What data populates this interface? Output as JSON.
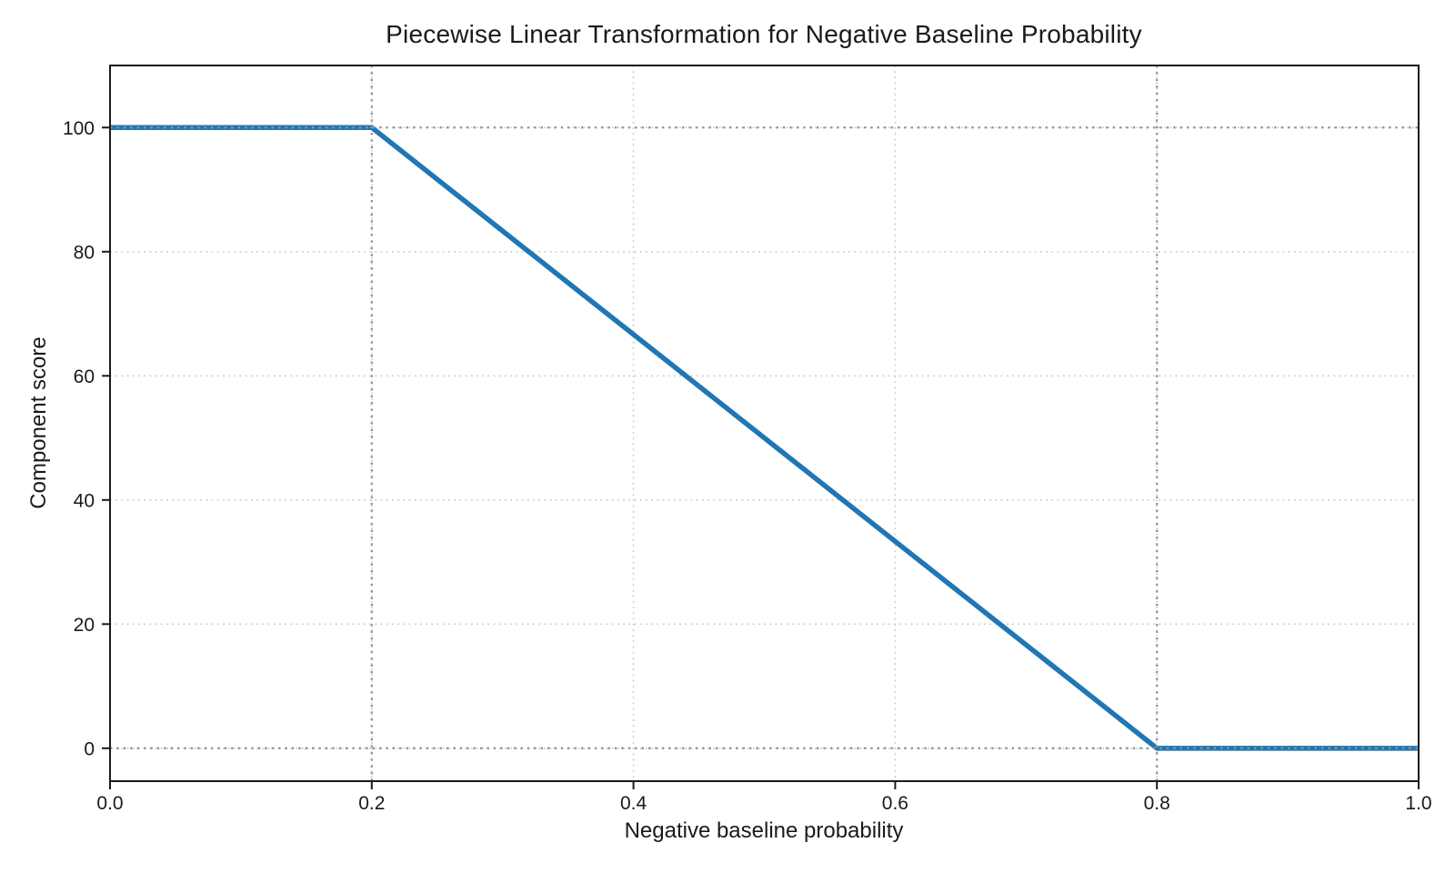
{
  "chart_data": {
    "type": "line",
    "title": "Piecewise Linear Transformation for Negative Baseline Probability",
    "xlabel": "Negative baseline probability",
    "ylabel": "Component score",
    "xlim": [
      0.0,
      1.0
    ],
    "ylim": [
      -5.3,
      110.0
    ],
    "xticks": [
      0.0,
      0.2,
      0.4,
      0.6,
      0.8,
      1.0
    ],
    "xtick_labels": [
      "0.0",
      "0.2",
      "0.4",
      "0.6",
      "0.8",
      "1.0"
    ],
    "yticks": [
      0,
      20,
      40,
      60,
      80,
      100
    ],
    "ytick_labels": [
      "0",
      "20",
      "40",
      "60",
      "80",
      "100"
    ],
    "grid": true,
    "legend": "none",
    "series": [
      {
        "name": "piecewise-transform",
        "color": "#1f77b4",
        "x": [
          0.0,
          0.2,
          0.8,
          1.0
        ],
        "y": [
          100,
          100,
          0,
          0
        ]
      }
    ],
    "reference_lines": {
      "vertical_x": [
        0.2,
        0.8
      ],
      "horizontal_y": [
        0,
        100
      ],
      "color": "#949494",
      "style": "dotted"
    },
    "colors": {
      "line": "#1f77b4",
      "grid": "#cbcbcb",
      "reference": "#949494",
      "axes": "#1a1a1a",
      "background": "#ffffff"
    }
  }
}
